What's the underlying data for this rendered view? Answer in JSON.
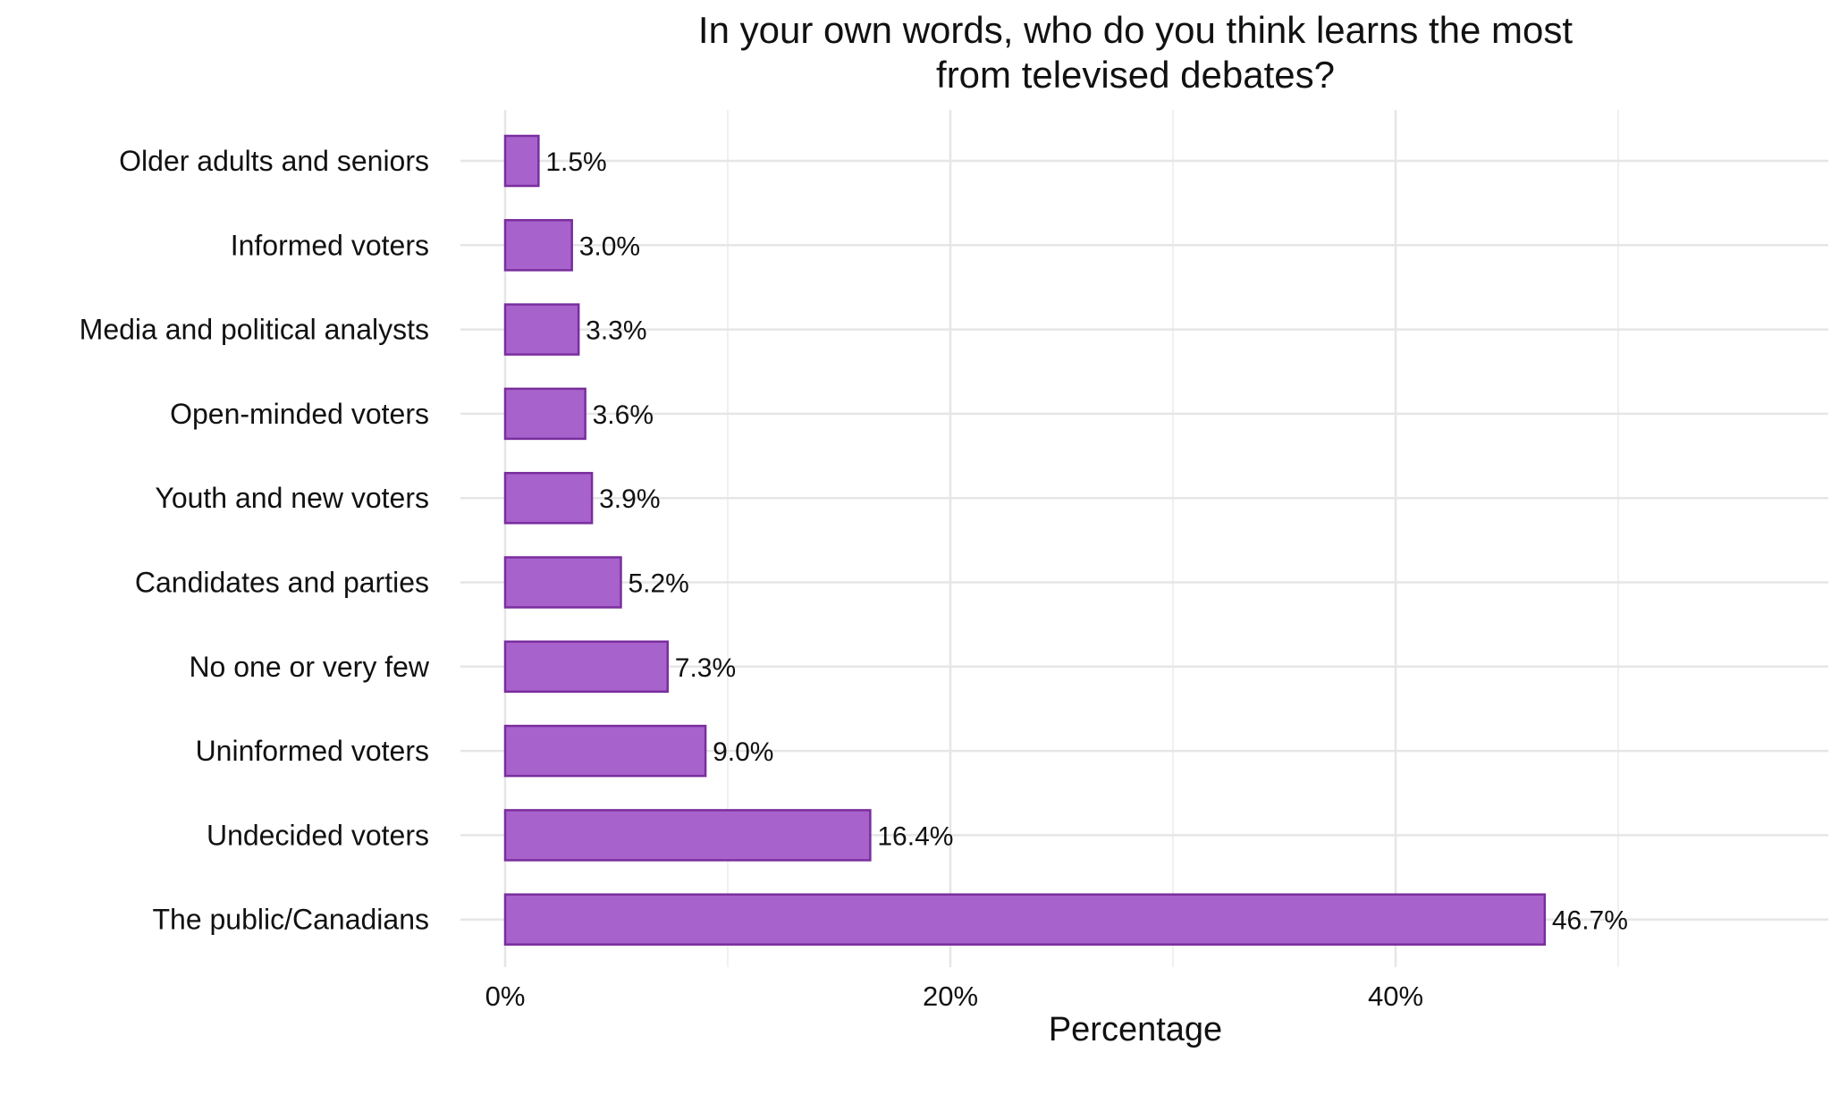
{
  "chart_data": {
    "type": "bar",
    "orientation": "horizontal",
    "title_lines": [
      "In your own words, who do you think learns the most",
      "from televised debates?"
    ],
    "xlabel": "Percentage",
    "ylabel": "",
    "xlim": [
      0,
      59
    ],
    "x_ticks": [
      0,
      20,
      40
    ],
    "x_tick_labels": [
      "0%",
      "20%",
      "40%"
    ],
    "minor_gridlines": [
      10,
      30,
      50
    ],
    "grid": true,
    "legend": "none",
    "bar_color": "#a862cc",
    "bar_edge_color": "#7a2e9e",
    "categories": [
      "Older adults and seniors",
      "Informed voters",
      "Media and political analysts",
      "Open-minded voters",
      "Youth and new voters",
      "Candidates and parties",
      "No one or very few",
      "Uninformed voters",
      "Undecided voters",
      "The public/Canadians"
    ],
    "values": [
      1.5,
      3.0,
      3.3,
      3.6,
      3.9,
      5.2,
      7.3,
      9.0,
      16.4,
      46.7
    ],
    "value_labels": [
      "1.5%",
      "3.0%",
      "3.3%",
      "3.6%",
      "3.9%",
      "5.2%",
      "7.3%",
      "9.0%",
      "16.4%",
      "46.7%"
    ]
  }
}
